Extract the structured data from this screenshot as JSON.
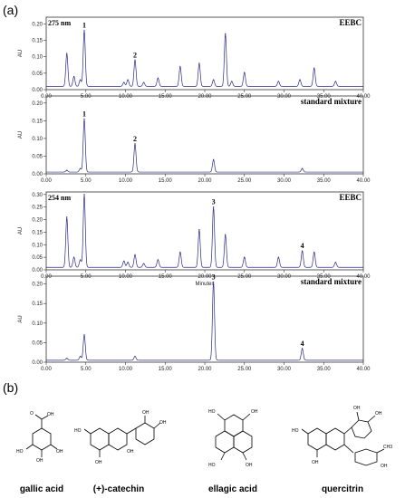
{
  "section_labels": {
    "a": "(a)",
    "b": "(b)"
  },
  "chart_data": [
    {
      "type": "line",
      "title": "EEBC",
      "wavelength": "275 nm",
      "xlabel": "",
      "ylabel": "AU",
      "xlim": [
        0,
        40
      ],
      "ylim": [
        0,
        0.22
      ],
      "yticks": [
        0.0,
        0.05,
        0.1,
        0.15,
        0.2
      ],
      "ytick_labels": [
        "0.00",
        "0.05",
        "0.10",
        "0.15",
        "0.20"
      ],
      "xticks": [
        0,
        5,
        10,
        15,
        20,
        25,
        30,
        35,
        40
      ],
      "xtick_labels": [
        "0.00",
        "5.00",
        "10.00",
        "15.00",
        "20.00",
        "25.00",
        "30.00",
        "35.00",
        "40.00"
      ],
      "baseline": 0.01,
      "peaks": [
        {
          "t": 2.6,
          "h": 0.1,
          "label": ""
        },
        {
          "t": 3.5,
          "h": 0.03,
          "label": ""
        },
        {
          "t": 4.3,
          "h": 0.02,
          "label": ""
        },
        {
          "t": 4.8,
          "h": 0.17,
          "label": "1"
        },
        {
          "t": 9.8,
          "h": 0.012,
          "label": ""
        },
        {
          "t": 10.3,
          "h": 0.02,
          "label": ""
        },
        {
          "t": 11.2,
          "h": 0.08,
          "label": "2"
        },
        {
          "t": 12.3,
          "h": 0.012,
          "label": ""
        },
        {
          "t": 14.1,
          "h": 0.025,
          "label": ""
        },
        {
          "t": 16.9,
          "h": 0.06,
          "label": ""
        },
        {
          "t": 19.3,
          "h": 0.07,
          "label": ""
        },
        {
          "t": 21.1,
          "h": 0.02,
          "label": ""
        },
        {
          "t": 22.6,
          "h": 0.16,
          "label": ""
        },
        {
          "t": 23.4,
          "h": 0.015,
          "label": ""
        },
        {
          "t": 25.0,
          "h": 0.042,
          "label": ""
        },
        {
          "t": 29.3,
          "h": 0.015,
          "label": ""
        },
        {
          "t": 32.0,
          "h": 0.02,
          "label": ""
        },
        {
          "t": 33.8,
          "h": 0.055,
          "label": ""
        },
        {
          "t": 36.5,
          "h": 0.015,
          "label": ""
        }
      ]
    },
    {
      "type": "line",
      "title": "standard mixture",
      "wavelength": "",
      "xlabel": "",
      "ylabel": "AU",
      "xlim": [
        0,
        40
      ],
      "ylim": [
        0,
        0.22
      ],
      "yticks": [
        0.0,
        0.05,
        0.1,
        0.15,
        0.2
      ],
      "ytick_labels": [
        "0.00",
        "0.05",
        "0.10",
        "0.15",
        "0.20"
      ],
      "xticks": [
        0,
        5,
        10,
        15,
        20,
        25,
        30,
        35,
        40
      ],
      "xtick_labels": [
        "0.00",
        "5.00",
        "10.00",
        "15.00",
        "20.00",
        "25.00",
        "30.00",
        "35.00",
        "40.00"
      ],
      "baseline": 0.005,
      "peaks": [
        {
          "t": 2.6,
          "h": 0.005,
          "label": ""
        },
        {
          "t": 4.3,
          "h": 0.01,
          "label": ""
        },
        {
          "t": 4.8,
          "h": 0.15,
          "label": "1"
        },
        {
          "t": 11.2,
          "h": 0.08,
          "label": "2"
        },
        {
          "t": 21.1,
          "h": 0.035,
          "label": ""
        },
        {
          "t": 32.3,
          "h": 0.01,
          "label": ""
        }
      ]
    },
    {
      "type": "line",
      "title": "EEBC",
      "wavelength": "254 nm",
      "xlabel": "Minutes",
      "ylabel": "AU",
      "xlim": [
        0,
        40
      ],
      "ylim": [
        0,
        0.31
      ],
      "yticks": [
        0.0,
        0.05,
        0.1,
        0.15,
        0.2,
        0.25,
        0.3
      ],
      "ytick_labels": [
        "0.00",
        "0.05",
        "0.10",
        "0.15",
        "0.20",
        "0.25",
        "0.30"
      ],
      "xticks": [
        0,
        5,
        10,
        15,
        20,
        25,
        30,
        35,
        40
      ],
      "xtick_labels": [
        "0.00",
        "5.00",
        "10.00",
        "15.00",
        "20.00",
        "25.00",
        "30.00",
        "35.00",
        "40.00"
      ],
      "baseline": 0.01,
      "peaks": [
        {
          "t": 2.6,
          "h": 0.2,
          "label": ""
        },
        {
          "t": 3.5,
          "h": 0.04,
          "label": ""
        },
        {
          "t": 4.3,
          "h": 0.03,
          "label": ""
        },
        {
          "t": 4.8,
          "h": 0.29,
          "label": ""
        },
        {
          "t": 9.8,
          "h": 0.025,
          "label": ""
        },
        {
          "t": 10.3,
          "h": 0.02,
          "label": ""
        },
        {
          "t": 11.2,
          "h": 0.05,
          "label": ""
        },
        {
          "t": 12.3,
          "h": 0.015,
          "label": ""
        },
        {
          "t": 14.1,
          "h": 0.03,
          "label": ""
        },
        {
          "t": 16.9,
          "h": 0.06,
          "label": ""
        },
        {
          "t": 19.3,
          "h": 0.15,
          "label": ""
        },
        {
          "t": 21.1,
          "h": 0.24,
          "label": "3"
        },
        {
          "t": 22.6,
          "h": 0.13,
          "label": ""
        },
        {
          "t": 25.0,
          "h": 0.04,
          "label": ""
        },
        {
          "t": 29.3,
          "h": 0.04,
          "label": ""
        },
        {
          "t": 32.3,
          "h": 0.065,
          "label": "4"
        },
        {
          "t": 33.8,
          "h": 0.06,
          "label": ""
        },
        {
          "t": 36.5,
          "h": 0.02,
          "label": ""
        }
      ]
    },
    {
      "type": "line",
      "title": "standard mixture",
      "wavelength": "",
      "xlabel": "",
      "ylabel": "AU",
      "xlim": [
        0,
        40
      ],
      "ylim": [
        0,
        0.22
      ],
      "yticks": [
        0.0,
        0.05,
        0.1,
        0.15,
        0.2
      ],
      "ytick_labels": [
        "0.00",
        "0.05",
        "0.10",
        "0.15",
        "0.20"
      ],
      "xticks": [
        0,
        5,
        10,
        15,
        20,
        25,
        30,
        35,
        40
      ],
      "xtick_labels": [
        "0.00",
        "5.00",
        "10.00",
        "15.00",
        "20.00",
        "25.00",
        "30.00",
        "35.00",
        "40.00"
      ],
      "baseline": 0.005,
      "peaks": [
        {
          "t": 2.6,
          "h": 0.005,
          "label": ""
        },
        {
          "t": 4.3,
          "h": 0.01,
          "label": ""
        },
        {
          "t": 4.8,
          "h": 0.065,
          "label": ""
        },
        {
          "t": 11.2,
          "h": 0.01,
          "label": ""
        },
        {
          "t": 21.1,
          "h": 0.2,
          "label": "3"
        },
        {
          "t": 32.3,
          "h": 0.03,
          "label": "4"
        }
      ]
    }
  ],
  "compounds": [
    {
      "name": "gallic acid"
    },
    {
      "name": "(+)-catechin"
    },
    {
      "name": "ellagic acid"
    },
    {
      "name": "quercitrin"
    }
  ],
  "atoms": {
    "oh": "OH",
    "ho": "HO",
    "o": "O",
    "ch3": "CH3"
  },
  "colors": {
    "trace": "#2a2a88",
    "axis": "#333333"
  }
}
